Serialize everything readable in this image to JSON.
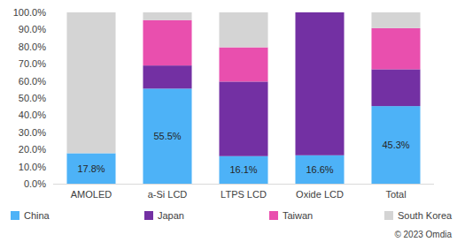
{
  "chart_data": {
    "type": "bar",
    "stacked": true,
    "grid": false,
    "legend": "bottom",
    "categories": [
      "AMOLED",
      "a-Si LCD",
      "LTPS  LCD",
      "Oxide LCD",
      "Total"
    ],
    "series": [
      {
        "name": "China",
        "color": "#4db2f7",
        "values": [
          17.8,
          55.5,
          16.1,
          16.6,
          45.3
        ],
        "data_labels": true,
        "value_labels": [
          "17.8%",
          "55.5%",
          "16.1%",
          "16.6%",
          "45.3%"
        ]
      },
      {
        "name": "Japan",
        "color": "#7330a3",
        "values": [
          0,
          13.5,
          43.5,
          83.4,
          21.5
        ]
      },
      {
        "name": "Taiwan",
        "color": "#e94fae",
        "values": [
          0,
          26.5,
          20,
          0,
          24
        ]
      },
      {
        "name": "South Korea",
        "color": "#d4d4d4",
        "values": [
          82.2,
          4.5,
          20.4,
          0,
          9.2
        ]
      }
    ],
    "ylim": [
      0,
      100
    ],
    "yticks": [
      {
        "value": 0,
        "label": "0.0%"
      },
      {
        "value": 10,
        "label": "10.0%"
      },
      {
        "value": 20,
        "label": "20.0%"
      },
      {
        "value": 30,
        "label": "30.0%"
      },
      {
        "value": 40,
        "label": "40.0%"
      },
      {
        "value": 50,
        "label": "50.0%"
      },
      {
        "value": 60,
        "label": "60.0%"
      },
      {
        "value": 70,
        "label": "70.0%"
      },
      {
        "value": 80,
        "label": "80.0%"
      },
      {
        "value": 90,
        "label": "90.0%"
      },
      {
        "value": 100,
        "label": "100.0%"
      }
    ],
    "source": "© 2023 Omdia"
  }
}
